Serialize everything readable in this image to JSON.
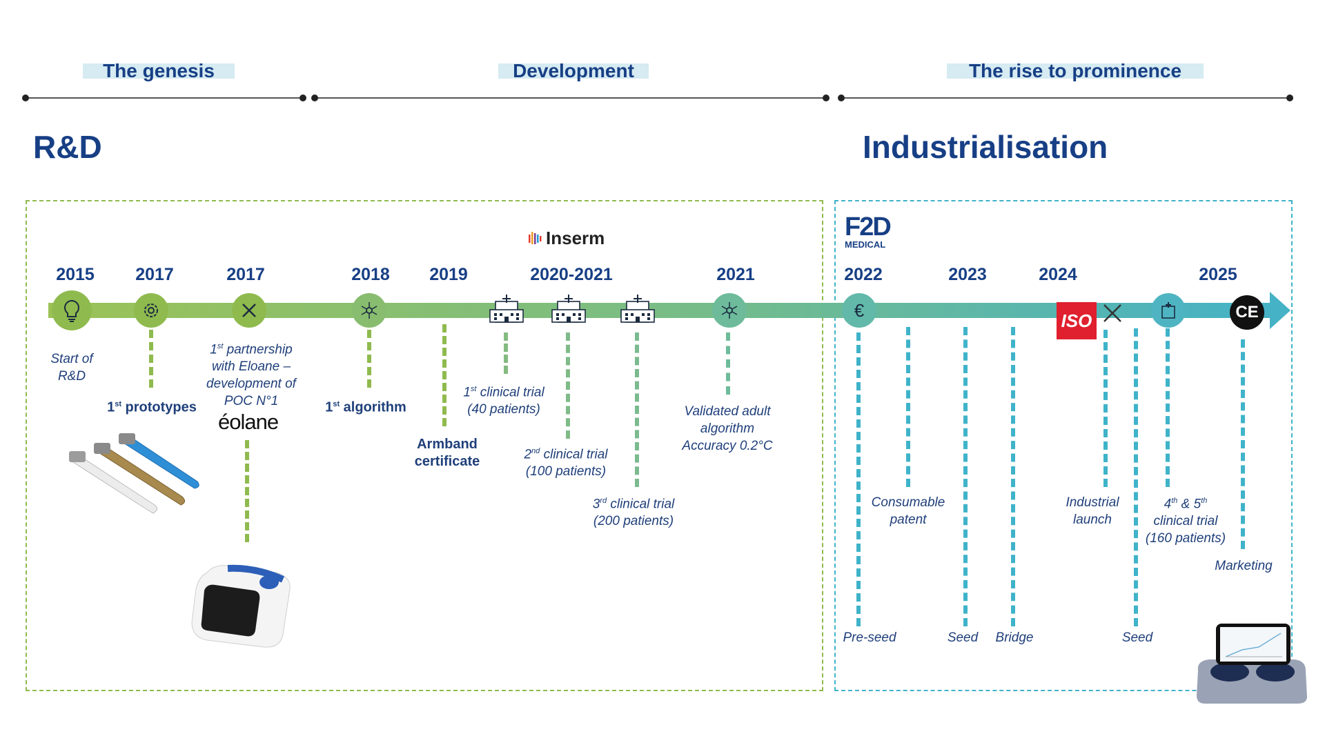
{
  "phases": {
    "genesis": "The genesis",
    "development": "Development",
    "rise": "The rise to prominence"
  },
  "sections": {
    "rd": "R&D",
    "industrialisation": "Industrialisation"
  },
  "logos": {
    "inserm": "Inserm",
    "f2d": "F2D",
    "f2d_sub": "MEDICAL",
    "eolane": "éolane",
    "iso": "ISO",
    "ce": "CE"
  },
  "years": [
    "2015",
    "2017",
    "2017",
    "2018",
    "2019",
    "2020-2021",
    "2021",
    "2022",
    "2023",
    "2024",
    "2025"
  ],
  "events": {
    "start_rd": [
      "Start of",
      "R&D"
    ],
    "prototypes": {
      "num": "1",
      "sup": "st",
      "text": " prototypes"
    },
    "partnership": {
      "num": "1",
      "sup": "st",
      "l1": " partnership",
      "l2": "with Eloane –",
      "l3": "development of",
      "l4": "POC N°1"
    },
    "algorithm": {
      "num": "1",
      "sup": "st",
      "text": " algorithm"
    },
    "armband": [
      "Armband",
      "certificate"
    ],
    "trial1": {
      "num": "1",
      "sup": "st",
      "l1": " clinical trial",
      "l2": "(40 patients)"
    },
    "trial2": {
      "num": "2",
      "sup": "nd",
      "l1": " clinical trial",
      "l2": "(100 patients)"
    },
    "trial3": {
      "num": "3",
      "sup": "rd",
      "l1": " clinical trial",
      "l2": "(200 patients)"
    },
    "validated": [
      "Validated adult",
      "algorithm",
      "Accuracy 0.2°C"
    ],
    "preseed": "Pre-seed",
    "patent": [
      "Consumable",
      "patent"
    ],
    "seed1": "Seed",
    "bridge": "Bridge",
    "industrial": [
      "Industrial",
      "launch"
    ],
    "seed2": "Seed",
    "trial45": {
      "a": "4",
      "asup": "th",
      "mid": " & 5",
      "bsup": "th",
      "l2": "clinical trial",
      "l3": "(160 patients)"
    },
    "marketing": "Marketing"
  },
  "colors": {
    "navy": "#173f85",
    "green": "#8fba4e",
    "teal": "#3fb3c9"
  }
}
